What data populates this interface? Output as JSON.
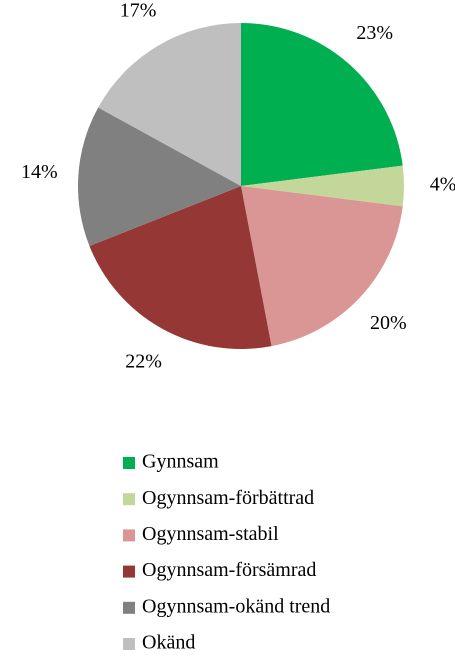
{
  "chart_data": {
    "type": "pie",
    "categories": [
      "Gynnsam",
      "Ogynnsam-förbättrad",
      "Ogynnsam-stabil",
      "Ogynnsam-försämrad",
      "Ogynnsam-okänd trend",
      "Okänd"
    ],
    "values": [
      23,
      4,
      20,
      22,
      14,
      17
    ],
    "value_labels": [
      "23%",
      "4%",
      "20%",
      "22%",
      "14%",
      "17%"
    ],
    "colors": [
      "#00b050",
      "#c4d79b",
      "#da9694",
      "#953735",
      "#808080",
      "#bfbfbf"
    ],
    "legend": "bottom"
  }
}
